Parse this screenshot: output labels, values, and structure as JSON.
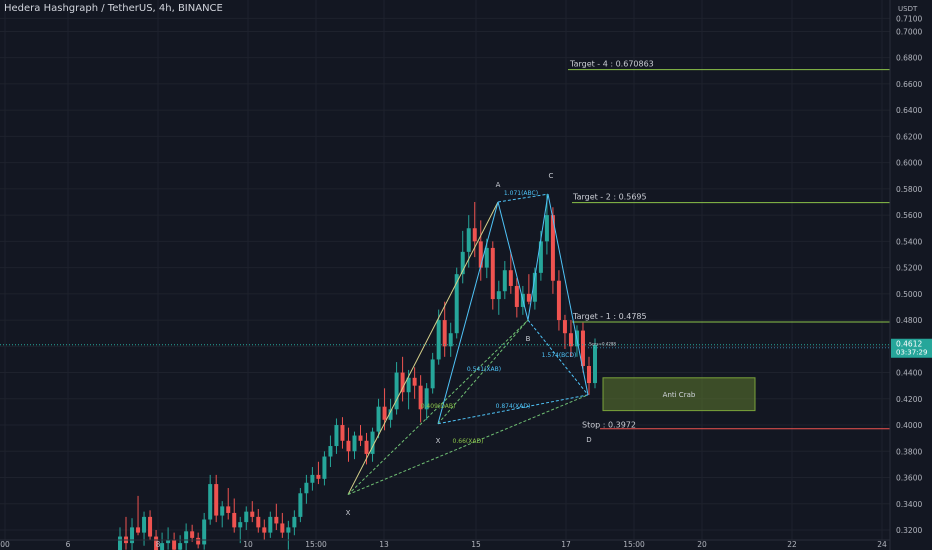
{
  "header": {
    "symbol_title": "Hedera Hashgraph / TetherUS, 4h, BINANCE"
  },
  "price_axis": {
    "currency": "USDT",
    "last_price": "0.4612",
    "countdown": "03:37:29",
    "ticks": [
      "0.7100",
      "0.7000",
      "0.6800",
      "0.6600",
      "0.6400",
      "0.6200",
      "0.6000",
      "0.5800",
      "0.5600",
      "0.5400",
      "0.5200",
      "0.5000",
      "0.4800",
      "0.4600",
      "0.4400",
      "0.4200",
      "0.4000",
      "0.3800",
      "0.3600",
      "0.3400",
      "0.3200"
    ]
  },
  "colors": {
    "background": "#131722",
    "grid": "#1e222d",
    "up_candle": "#26a69a",
    "down_candle": "#ef5350",
    "pattern_line": "#4fc3f7",
    "xa_line": "#d4d08a",
    "target_line": "#8bc34a",
    "stop_line": "#ef5350",
    "zone_fill": "#5f7a2e",
    "last_price": "#26a69a"
  },
  "chart_data": {
    "type": "candlestick",
    "x_tick_labels": [
      "00",
      "6",
      "8",
      "10",
      "15:00",
      "13",
      "15",
      "17",
      "15:00",
      "20",
      "22",
      "24"
    ],
    "y_range": [
      0.32,
      0.715
    ],
    "grid": true,
    "harmonic_pattern": {
      "points": [
        {
          "label": "X",
          "price": 0.347
        },
        {
          "label": "A",
          "price": 0.57
        },
        {
          "label": "B",
          "price": 0.48
        },
        {
          "label": "C",
          "price": 0.576
        },
        {
          "label": "D",
          "price": 0.423
        }
      ],
      "ratios": [
        "1.071(ABC)",
        "0.541(XAB)",
        "1.574(BCD)",
        "0.409(DAB)",
        "0.874(XAD)",
        "0.66(XAD)"
      ]
    },
    "levels": [
      {
        "label": "Target - 4 : 0.670863",
        "price": 0.670863,
        "kind": "target"
      },
      {
        "label": "Target - 2 : 0.5695",
        "price": 0.5695,
        "kind": "target"
      },
      {
        "label": "Target - 1 : 0.4785",
        "price": 0.4785,
        "kind": "target"
      },
      {
        "label": "Stop : 0.3972",
        "price": 0.3972,
        "kind": "stop"
      }
    ],
    "zone": {
      "label": "Anti Crab",
      "top": 0.436,
      "bottom": 0.411
    },
    "point_d_note": "Sens=0.4288",
    "last_price": 0.4612,
    "candles": [
      [
        0.3,
        0.322,
        0.296,
        0.315
      ],
      [
        0.315,
        0.33,
        0.305,
        0.31
      ],
      [
        0.31,
        0.329,
        0.3,
        0.322
      ],
      [
        0.322,
        0.346,
        0.316,
        0.318
      ],
      [
        0.318,
        0.334,
        0.308,
        0.33
      ],
      [
        0.33,
        0.335,
        0.312,
        0.315
      ],
      [
        0.315,
        0.32,
        0.298,
        0.302
      ],
      [
        0.302,
        0.318,
        0.296,
        0.31
      ],
      [
        0.31,
        0.322,
        0.305,
        0.312
      ],
      [
        0.312,
        0.318,
        0.3,
        0.305
      ],
      [
        0.305,
        0.316,
        0.299,
        0.31
      ],
      [
        0.31,
        0.325,
        0.303,
        0.319
      ],
      [
        0.319,
        0.324,
        0.311,
        0.314
      ],
      [
        0.314,
        0.318,
        0.306,
        0.309
      ],
      [
        0.309,
        0.333,
        0.305,
        0.328
      ],
      [
        0.328,
        0.362,
        0.324,
        0.355
      ],
      [
        0.355,
        0.362,
        0.326,
        0.331
      ],
      [
        0.331,
        0.342,
        0.322,
        0.338
      ],
      [
        0.338,
        0.352,
        0.328,
        0.333
      ],
      [
        0.333,
        0.344,
        0.318,
        0.322
      ],
      [
        0.322,
        0.33,
        0.31,
        0.326
      ],
      [
        0.326,
        0.338,
        0.32,
        0.334
      ],
      [
        0.334,
        0.342,
        0.326,
        0.33
      ],
      [
        0.33,
        0.336,
        0.318,
        0.322
      ],
      [
        0.322,
        0.328,
        0.312,
        0.318
      ],
      [
        0.318,
        0.334,
        0.314,
        0.33
      ],
      [
        0.33,
        0.34,
        0.32,
        0.325
      ],
      [
        0.325,
        0.333,
        0.314,
        0.318
      ],
      [
        0.318,
        0.327,
        0.305,
        0.322
      ],
      [
        0.322,
        0.335,
        0.316,
        0.33
      ],
      [
        0.33,
        0.352,
        0.326,
        0.348
      ],
      [
        0.348,
        0.362,
        0.34,
        0.356
      ],
      [
        0.356,
        0.368,
        0.35,
        0.362
      ],
      [
        0.362,
        0.372,
        0.355,
        0.359
      ],
      [
        0.359,
        0.38,
        0.354,
        0.376
      ],
      [
        0.376,
        0.392,
        0.368,
        0.384
      ],
      [
        0.384,
        0.405,
        0.378,
        0.4
      ],
      [
        0.4,
        0.406,
        0.382,
        0.388
      ],
      [
        0.388,
        0.398,
        0.372,
        0.38
      ],
      [
        0.38,
        0.395,
        0.374,
        0.392
      ],
      [
        0.392,
        0.4,
        0.384,
        0.388
      ],
      [
        0.388,
        0.394,
        0.37,
        0.378
      ],
      [
        0.378,
        0.398,
        0.372,
        0.395
      ],
      [
        0.395,
        0.42,
        0.39,
        0.414
      ],
      [
        0.414,
        0.428,
        0.396,
        0.404
      ],
      [
        0.404,
        0.42,
        0.398,
        0.412
      ],
      [
        0.412,
        0.448,
        0.408,
        0.44
      ],
      [
        0.44,
        0.452,
        0.418,
        0.425
      ],
      [
        0.425,
        0.442,
        0.412,
        0.436
      ],
      [
        0.436,
        0.444,
        0.42,
        0.43
      ],
      [
        0.43,
        0.438,
        0.402,
        0.412
      ],
      [
        0.412,
        0.432,
        0.404,
        0.428
      ],
      [
        0.428,
        0.455,
        0.424,
        0.45
      ],
      [
        0.45,
        0.488,
        0.446,
        0.48
      ],
      [
        0.48,
        0.494,
        0.452,
        0.46
      ],
      [
        0.46,
        0.478,
        0.452,
        0.47
      ],
      [
        0.47,
        0.52,
        0.466,
        0.515
      ],
      [
        0.515,
        0.548,
        0.508,
        0.532
      ],
      [
        0.532,
        0.56,
        0.52,
        0.55
      ],
      [
        0.55,
        0.57,
        0.528,
        0.54
      ],
      [
        0.54,
        0.556,
        0.51,
        0.52
      ],
      [
        0.52,
        0.542,
        0.512,
        0.535
      ],
      [
        0.535,
        0.54,
        0.488,
        0.496
      ],
      [
        0.496,
        0.51,
        0.484,
        0.502
      ],
      [
        0.502,
        0.525,
        0.496,
        0.518
      ],
      [
        0.518,
        0.532,
        0.5,
        0.506
      ],
      [
        0.506,
        0.512,
        0.482,
        0.49
      ],
      [
        0.49,
        0.506,
        0.484,
        0.5
      ],
      [
        0.5,
        0.515,
        0.492,
        0.494
      ],
      [
        0.494,
        0.52,
        0.488,
        0.516
      ],
      [
        0.516,
        0.548,
        0.51,
        0.54
      ],
      [
        0.54,
        0.576,
        0.53,
        0.56
      ],
      [
        0.56,
        0.566,
        0.5,
        0.51
      ],
      [
        0.51,
        0.518,
        0.472,
        0.48
      ],
      [
        0.48,
        0.484,
        0.458,
        0.47
      ],
      [
        0.47,
        0.48,
        0.452,
        0.46
      ],
      [
        0.46,
        0.476,
        0.452,
        0.472
      ],
      [
        0.472,
        0.478,
        0.44,
        0.445
      ],
      [
        0.445,
        0.452,
        0.423,
        0.432
      ],
      [
        0.432,
        0.466,
        0.428,
        0.461
      ]
    ]
  }
}
